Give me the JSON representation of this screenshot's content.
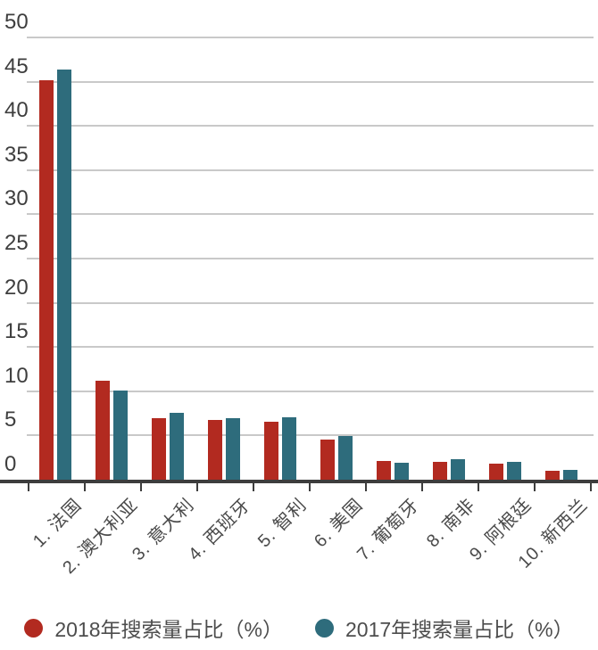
{
  "chart_data": {
    "type": "bar",
    "title": "",
    "xlabel": "",
    "ylabel": "",
    "categories": [
      "1. 法国",
      "2. 澳大利亚",
      "3. 意大利",
      "4. 西班牙",
      "5. 智利",
      "6. 美国",
      "7. 葡萄牙",
      "8. 南非",
      "9. 阿根廷",
      "10. 新西兰"
    ],
    "series": [
      {
        "name": "2018年搜索量占比（%）",
        "color": "#b22a20",
        "values": [
          45.2,
          11.2,
          7.0,
          6.8,
          6.6,
          4.5,
          2.1,
          2.0,
          1.8,
          1.0
        ]
      },
      {
        "name": "2017年搜索量占比（%）",
        "color": "#2e6c7c",
        "values": [
          46.4,
          10.1,
          7.6,
          7.0,
          7.1,
          4.9,
          1.9,
          2.3,
          2.0,
          1.1
        ]
      }
    ],
    "ylim": [
      0,
      50
    ],
    "yticks": [
      50,
      45,
      40,
      35,
      30,
      25,
      20,
      15,
      10,
      5,
      0
    ],
    "grid": true,
    "legend_position": "bottom",
    "axis_color": "#3d3d3d",
    "gridline_color": "#c9c9c9"
  }
}
